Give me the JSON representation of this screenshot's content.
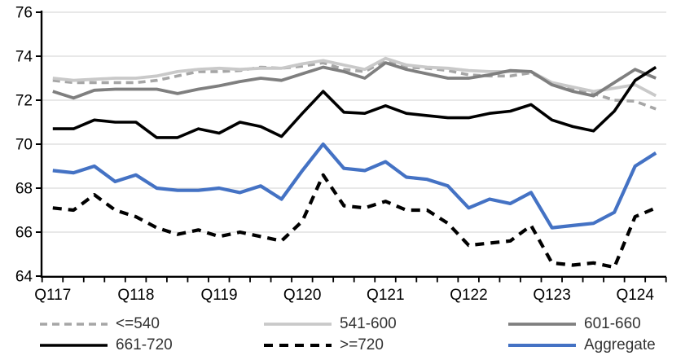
{
  "chart_data": {
    "type": "line",
    "title": "",
    "xlabel": "",
    "ylabel": "",
    "ylim": [
      64,
      76
    ],
    "y_ticks": [
      64,
      66,
      68,
      70,
      72,
      74,
      76
    ],
    "grid": "horizontal-light",
    "legend_position": "bottom",
    "x_categories": [
      "Q1 2017",
      "Q2 2017",
      "Q3 2017",
      "Q4 2017",
      "Q1 2018",
      "Q2 2018",
      "Q3 2018",
      "Q4 2018",
      "Q1 2019",
      "Q2 2019",
      "Q3 2019",
      "Q4 2019",
      "Q1 2020",
      "Q2 2020",
      "Q3 2020",
      "Q4 2020",
      "Q1 2021",
      "Q2 2021",
      "Q3 2021",
      "Q4 2021",
      "Q1 2022",
      "Q2 2022",
      "Q3 2022",
      "Q4 2022",
      "Q1 2023",
      "Q2 2023",
      "Q3 2023",
      "Q4 2023",
      "Q1 2024",
      "Q2 2024"
    ],
    "x_tick_labels": [
      {
        "label": "Q117",
        "index": 0
      },
      {
        "label": "Q118",
        "index": 4
      },
      {
        "label": "Q119",
        "index": 8
      },
      {
        "label": "Q120",
        "index": 12
      },
      {
        "label": "Q121",
        "index": 16
      },
      {
        "label": "Q122",
        "index": 20
      },
      {
        "label": "Q123",
        "index": 24
      },
      {
        "label": "Q124",
        "index": 28
      }
    ],
    "series": [
      {
        "key": "le-540",
        "name": "<=540",
        "style": "dashed",
        "color": "#a6a6a6",
        "stroke_width": 3.6,
        "dash": "9 6",
        "values": [
          72.9,
          72.8,
          72.8,
          72.8,
          72.8,
          72.9,
          73.1,
          73.3,
          73.3,
          73.35,
          73.5,
          73.45,
          73.55,
          73.7,
          73.4,
          73.3,
          73.8,
          73.5,
          73.45,
          73.35,
          73.15,
          73.1,
          73.1,
          73.25,
          72.75,
          72.5,
          72.3,
          72.0,
          71.95,
          71.6
        ]
      },
      {
        "key": "541-600",
        "name": "541-600",
        "style": "solid",
        "color": "#c9c9c9",
        "stroke_width": 3.8,
        "dash": "",
        "values": [
          73.0,
          72.9,
          72.95,
          73.0,
          73.0,
          73.1,
          73.3,
          73.4,
          73.45,
          73.4,
          73.45,
          73.45,
          73.65,
          73.8,
          73.6,
          73.4,
          73.9,
          73.6,
          73.5,
          73.45,
          73.35,
          73.3,
          73.3,
          73.3,
          72.8,
          72.6,
          72.4,
          72.55,
          72.7,
          72.2
        ]
      },
      {
        "key": "601-660",
        "name": "601-660",
        "style": "solid",
        "color": "#7f7f7f",
        "stroke_width": 3.8,
        "dash": "",
        "values": [
          72.4,
          72.1,
          72.45,
          72.5,
          72.5,
          72.5,
          72.3,
          72.5,
          72.65,
          72.85,
          73.0,
          72.9,
          73.2,
          73.5,
          73.3,
          73.0,
          73.7,
          73.4,
          73.2,
          73.0,
          73.0,
          73.15,
          73.35,
          73.3,
          72.7,
          72.4,
          72.2,
          72.8,
          73.4,
          73.0
        ]
      },
      {
        "key": "661-720",
        "name": "661-720",
        "style": "solid",
        "color": "#000000",
        "stroke_width": 3.6,
        "dash": "",
        "values": [
          70.7,
          70.7,
          71.1,
          71.0,
          71.0,
          70.3,
          70.3,
          70.7,
          70.5,
          71.0,
          70.8,
          70.35,
          71.4,
          72.4,
          71.45,
          71.4,
          71.75,
          71.4,
          71.3,
          71.2,
          71.2,
          71.4,
          71.5,
          71.8,
          71.1,
          70.8,
          70.6,
          71.5,
          72.9,
          73.5
        ]
      },
      {
        "key": "ge-720",
        "name": ">=720",
        "style": "dashed",
        "color": "#000000",
        "stroke_width": 4.2,
        "dash": "11 8",
        "values": [
          67.1,
          67.0,
          67.7,
          67.0,
          66.7,
          66.2,
          65.9,
          66.1,
          65.8,
          66.0,
          65.8,
          65.6,
          66.5,
          68.6,
          67.2,
          67.1,
          67.4,
          67.0,
          67.0,
          66.4,
          65.4,
          65.5,
          65.6,
          66.3,
          64.6,
          64.5,
          64.6,
          64.4,
          66.7,
          67.1
        ]
      },
      {
        "key": "aggregate",
        "name": "Aggregate",
        "style": "solid",
        "color": "#4472c4",
        "stroke_width": 4.2,
        "dash": "",
        "values": [
          68.8,
          68.7,
          69.0,
          68.3,
          68.6,
          68.0,
          67.9,
          67.9,
          68.0,
          67.8,
          68.1,
          67.5,
          68.8,
          70.0,
          68.9,
          68.8,
          69.2,
          68.5,
          68.4,
          68.1,
          67.1,
          67.5,
          67.3,
          67.8,
          66.2,
          66.3,
          66.4,
          66.9,
          69.0,
          69.6
        ]
      }
    ]
  },
  "colors": {
    "background": "#ffffff",
    "gridline": "#d9d9d9",
    "axis": "#000000",
    "axis_text": "#000000",
    "legend_text": "#333333"
  }
}
